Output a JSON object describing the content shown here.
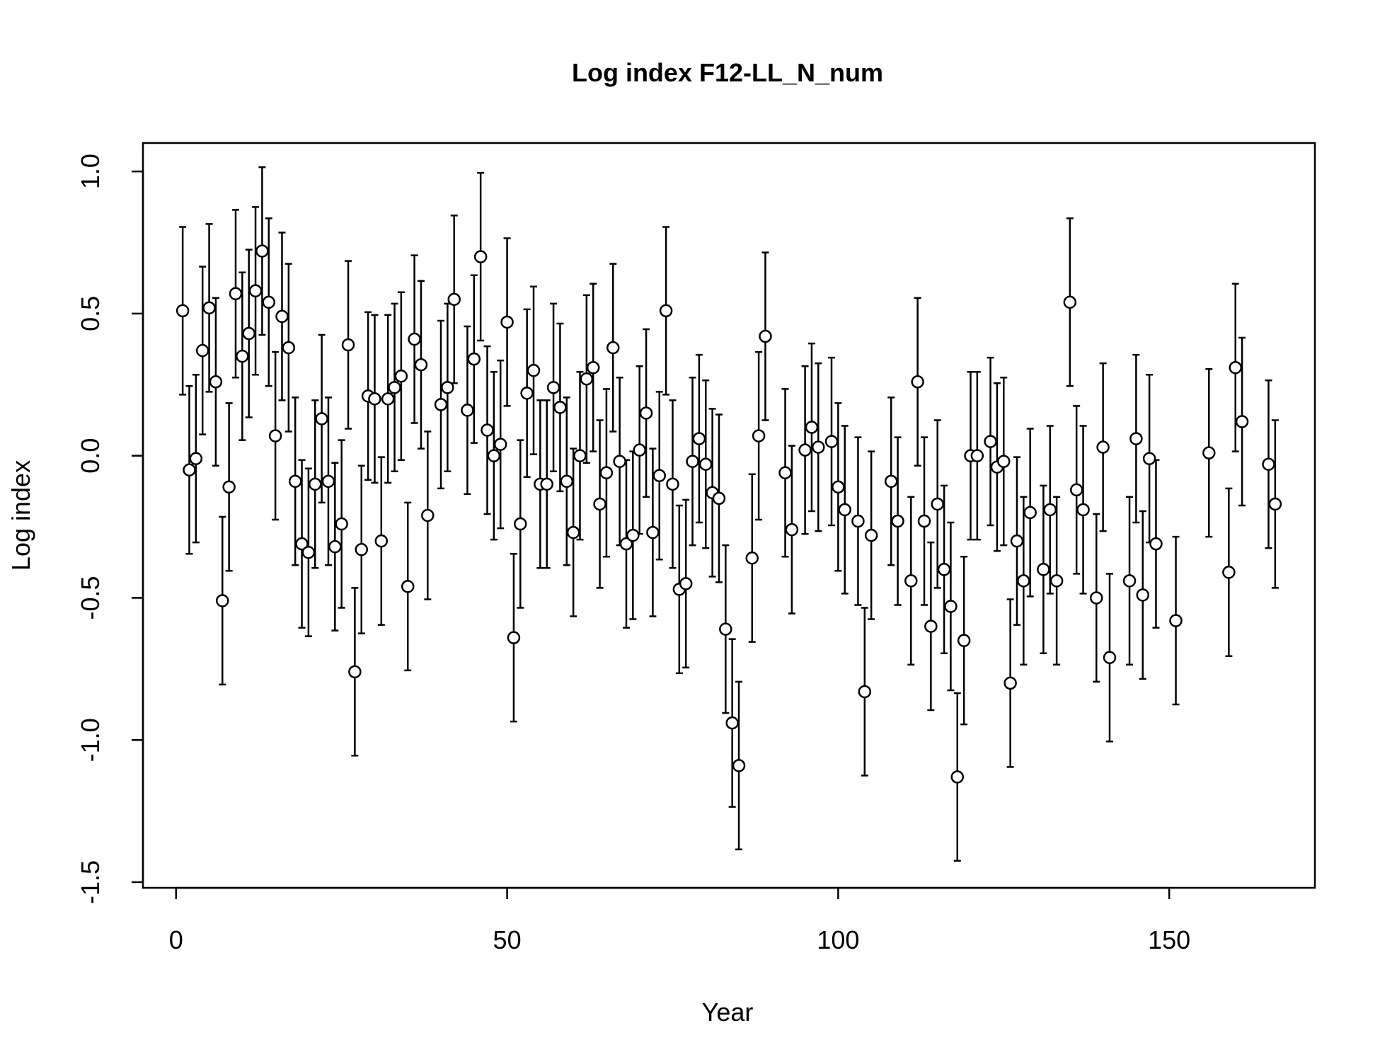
{
  "chart_data": {
    "type": "scatter",
    "title": "Log index F12-LL_N_num",
    "xlabel": "Year",
    "ylabel": "Log index",
    "xlim": [
      -5,
      172
    ],
    "ylim": [
      -1.52,
      1.1
    ],
    "xticks": [
      0,
      50,
      100,
      150
    ],
    "xtick_labels": [
      "0",
      "50",
      "100",
      "150"
    ],
    "yticks": [
      -1.5,
      -1.0,
      -0.5,
      0.0,
      0.5,
      1.0
    ],
    "ytick_labels": [
      "-1.5",
      "-1.0",
      "-0.5",
      "0.0",
      "0.5",
      "1.0"
    ],
    "grid": false,
    "legend": "none",
    "error_halfwidth": 0.295,
    "series": [
      {
        "points": [
          {
            "x": 1,
            "y": 0.51
          },
          {
            "x": 2,
            "y": -0.05
          },
          {
            "x": 3,
            "y": -0.01
          },
          {
            "x": 4,
            "y": 0.37
          },
          {
            "x": 5,
            "y": 0.52
          },
          {
            "x": 6,
            "y": 0.26
          },
          {
            "x": 7,
            "y": -0.51
          },
          {
            "x": 8,
            "y": -0.11
          },
          {
            "x": 9,
            "y": 0.57
          },
          {
            "x": 10,
            "y": 0.35
          },
          {
            "x": 11,
            "y": 0.43
          },
          {
            "x": 12,
            "y": 0.58
          },
          {
            "x": 13,
            "y": 0.72
          },
          {
            "x": 14,
            "y": 0.54
          },
          {
            "x": 15,
            "y": 0.07
          },
          {
            "x": 16,
            "y": 0.49
          },
          {
            "x": 17,
            "y": 0.38
          },
          {
            "x": 18,
            "y": -0.09
          },
          {
            "x": 19,
            "y": -0.31
          },
          {
            "x": 20,
            "y": -0.34
          },
          {
            "x": 21,
            "y": -0.1
          },
          {
            "x": 22,
            "y": 0.13
          },
          {
            "x": 23,
            "y": -0.09
          },
          {
            "x": 24,
            "y": -0.32
          },
          {
            "x": 25,
            "y": -0.24
          },
          {
            "x": 26,
            "y": 0.39
          },
          {
            "x": 27,
            "y": -0.76
          },
          {
            "x": 28,
            "y": -0.33
          },
          {
            "x": 29,
            "y": 0.21
          },
          {
            "x": 30,
            "y": 0.2
          },
          {
            "x": 31,
            "y": -0.3
          },
          {
            "x": 32,
            "y": 0.2
          },
          {
            "x": 33,
            "y": 0.24
          },
          {
            "x": 34,
            "y": 0.28
          },
          {
            "x": 35,
            "y": -0.46
          },
          {
            "x": 36,
            "y": 0.41
          },
          {
            "x": 37,
            "y": 0.32
          },
          {
            "x": 38,
            "y": -0.21
          },
          {
            "x": 40,
            "y": 0.18
          },
          {
            "x": 41,
            "y": 0.24
          },
          {
            "x": 42,
            "y": 0.55
          },
          {
            "x": 44,
            "y": 0.16
          },
          {
            "x": 45,
            "y": 0.34
          },
          {
            "x": 46,
            "y": 0.7
          },
          {
            "x": 47,
            "y": 0.09
          },
          {
            "x": 48,
            "y": 0.0
          },
          {
            "x": 49,
            "y": 0.04
          },
          {
            "x": 50,
            "y": 0.47
          },
          {
            "x": 51,
            "y": -0.64
          },
          {
            "x": 52,
            "y": -0.24
          },
          {
            "x": 53,
            "y": 0.22
          },
          {
            "x": 54,
            "y": 0.3
          },
          {
            "x": 55,
            "y": -0.1
          },
          {
            "x": 56,
            "y": -0.1
          },
          {
            "x": 57,
            "y": 0.24
          },
          {
            "x": 58,
            "y": 0.17
          },
          {
            "x": 59,
            "y": -0.09
          },
          {
            "x": 60,
            "y": -0.27
          },
          {
            "x": 61,
            "y": 0.0
          },
          {
            "x": 62,
            "y": 0.27
          },
          {
            "x": 63,
            "y": 0.31
          },
          {
            "x": 64,
            "y": -0.17
          },
          {
            "x": 65,
            "y": -0.06
          },
          {
            "x": 66,
            "y": 0.38
          },
          {
            "x": 67,
            "y": -0.02
          },
          {
            "x": 68,
            "y": -0.31
          },
          {
            "x": 69,
            "y": -0.28
          },
          {
            "x": 70,
            "y": 0.02
          },
          {
            "x": 71,
            "y": 0.15
          },
          {
            "x": 72,
            "y": -0.27
          },
          {
            "x": 73,
            "y": -0.07
          },
          {
            "x": 74,
            "y": 0.51
          },
          {
            "x": 75,
            "y": -0.1
          },
          {
            "x": 76,
            "y": -0.47
          },
          {
            "x": 77,
            "y": -0.45
          },
          {
            "x": 78,
            "y": -0.02
          },
          {
            "x": 79,
            "y": 0.06
          },
          {
            "x": 80,
            "y": -0.03
          },
          {
            "x": 81,
            "y": -0.13
          },
          {
            "x": 82,
            "y": -0.15
          },
          {
            "x": 83,
            "y": -0.61
          },
          {
            "x": 84,
            "y": -0.94
          },
          {
            "x": 85,
            "y": -1.09
          },
          {
            "x": 87,
            "y": -0.36
          },
          {
            "x": 88,
            "y": 0.07
          },
          {
            "x": 89,
            "y": 0.42
          },
          {
            "x": 92,
            "y": -0.06
          },
          {
            "x": 93,
            "y": -0.26
          },
          {
            "x": 95,
            "y": 0.02
          },
          {
            "x": 96,
            "y": 0.1
          },
          {
            "x": 97,
            "y": 0.03
          },
          {
            "x": 99,
            "y": 0.05
          },
          {
            "x": 100,
            "y": -0.11
          },
          {
            "x": 101,
            "y": -0.19
          },
          {
            "x": 103,
            "y": -0.23
          },
          {
            "x": 104,
            "y": -0.83
          },
          {
            "x": 105,
            "y": -0.28
          },
          {
            "x": 108,
            "y": -0.09
          },
          {
            "x": 109,
            "y": -0.23
          },
          {
            "x": 111,
            "y": -0.44
          },
          {
            "x": 112,
            "y": 0.26
          },
          {
            "x": 113,
            "y": -0.23
          },
          {
            "x": 114,
            "y": -0.6
          },
          {
            "x": 115,
            "y": -0.17
          },
          {
            "x": 116,
            "y": -0.4
          },
          {
            "x": 117,
            "y": -0.53
          },
          {
            "x": 118,
            "y": -1.13
          },
          {
            "x": 119,
            "y": -0.65
          },
          {
            "x": 120,
            "y": 0.0
          },
          {
            "x": 121,
            "y": 0.0
          },
          {
            "x": 123,
            "y": 0.05
          },
          {
            "x": 124,
            "y": -0.04
          },
          {
            "x": 125,
            "y": -0.02
          },
          {
            "x": 126,
            "y": -0.8
          },
          {
            "x": 127,
            "y": -0.3
          },
          {
            "x": 128,
            "y": -0.44
          },
          {
            "x": 129,
            "y": -0.2
          },
          {
            "x": 131,
            "y": -0.4
          },
          {
            "x": 132,
            "y": -0.19
          },
          {
            "x": 133,
            "y": -0.44
          },
          {
            "x": 135,
            "y": 0.54
          },
          {
            "x": 136,
            "y": -0.12
          },
          {
            "x": 137,
            "y": -0.19
          },
          {
            "x": 139,
            "y": -0.5
          },
          {
            "x": 140,
            "y": 0.03
          },
          {
            "x": 141,
            "y": -0.71
          },
          {
            "x": 144,
            "y": -0.44
          },
          {
            "x": 145,
            "y": 0.06
          },
          {
            "x": 146,
            "y": -0.49
          },
          {
            "x": 147,
            "y": -0.01
          },
          {
            "x": 148,
            "y": -0.31
          },
          {
            "x": 151,
            "y": -0.58
          },
          {
            "x": 156,
            "y": 0.01
          },
          {
            "x": 159,
            "y": -0.41
          },
          {
            "x": 160,
            "y": 0.31
          },
          {
            "x": 161,
            "y": 0.12
          },
          {
            "x": 165,
            "y": -0.03
          },
          {
            "x": 166,
            "y": -0.17
          }
        ]
      }
    ]
  }
}
